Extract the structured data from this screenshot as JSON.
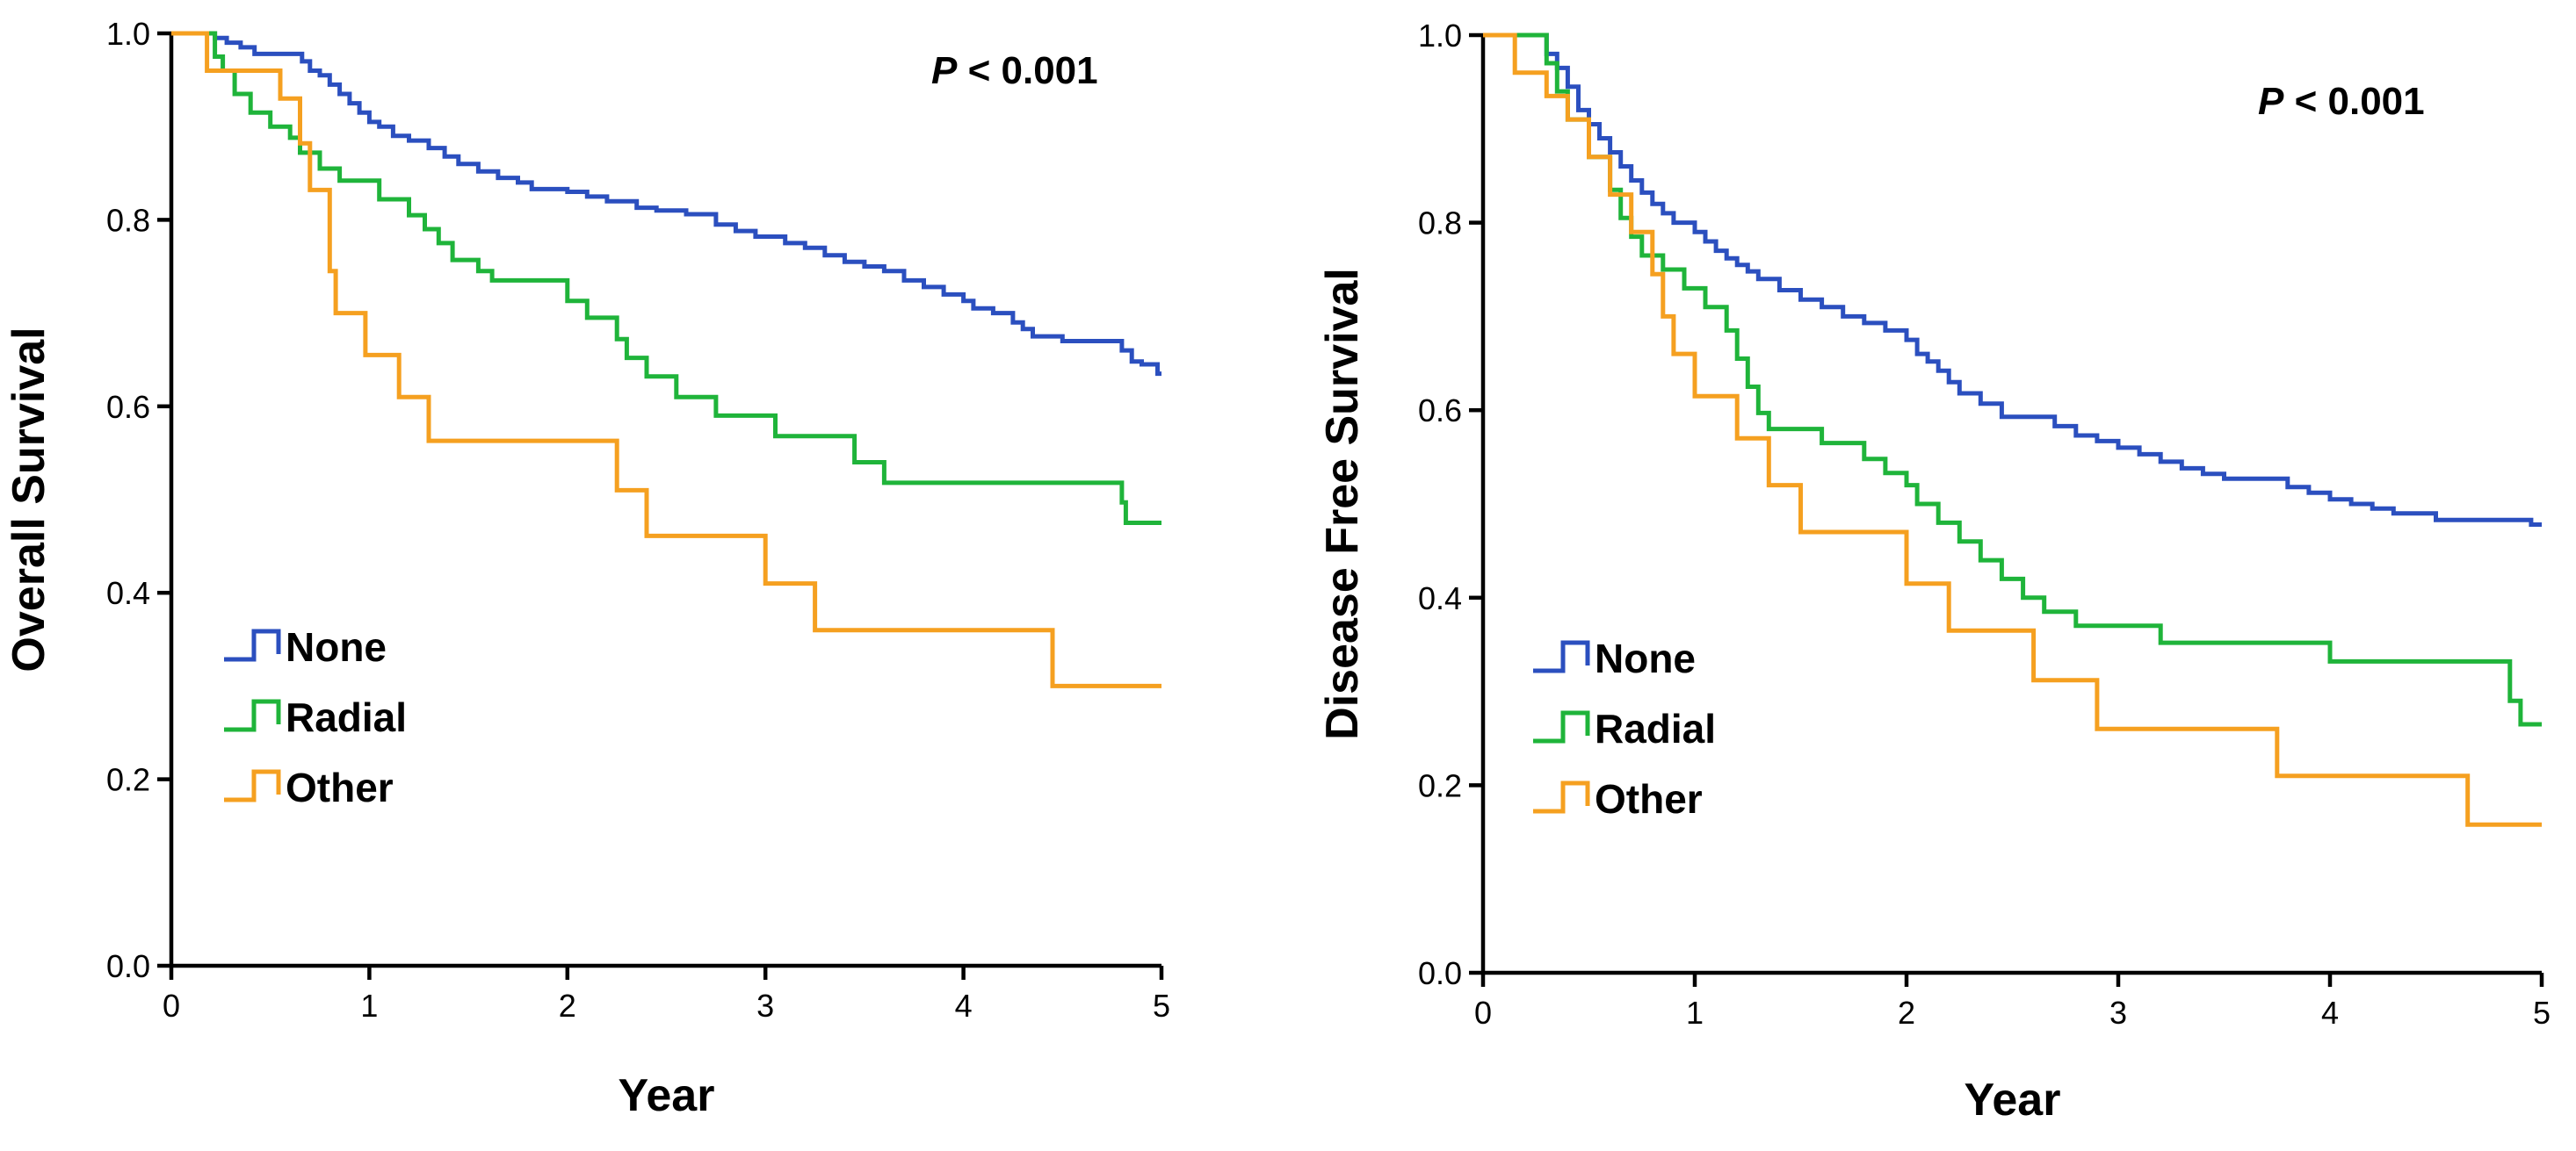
{
  "chart_data": [
    {
      "type": "line",
      "step": true,
      "title": "",
      "xlabel": "Year",
      "ylabel": "Overall Survival",
      "xlim": [
        0,
        5
      ],
      "ylim": [
        0,
        1
      ],
      "xticks": [
        "0",
        "1",
        "2",
        "3",
        "4",
        "5"
      ],
      "yticks": [
        "0.0",
        "0.2",
        "0.4",
        "0.6",
        "0.8",
        "1.0"
      ],
      "annotation": {
        "italic": "P",
        "rest": " < 0.001"
      },
      "legend_position": "bottom-left",
      "series": [
        {
          "name": "None",
          "color": "#2b4fbf",
          "points": [
            [
              0,
              1
            ],
            [
              0.2,
              1
            ],
            [
              0.22,
              0.995
            ],
            [
              0.28,
              0.99
            ],
            [
              0.35,
              0.985
            ],
            [
              0.42,
              0.978
            ],
            [
              0.6,
              0.978
            ],
            [
              0.66,
              0.97
            ],
            [
              0.7,
              0.96
            ],
            [
              0.75,
              0.955
            ],
            [
              0.8,
              0.945
            ],
            [
              0.85,
              0.935
            ],
            [
              0.9,
              0.925
            ],
            [
              0.95,
              0.915
            ],
            [
              1.0,
              0.905
            ],
            [
              1.05,
              0.9
            ],
            [
              1.12,
              0.89
            ],
            [
              1.2,
              0.885
            ],
            [
              1.3,
              0.877
            ],
            [
              1.38,
              0.868
            ],
            [
              1.45,
              0.86
            ],
            [
              1.55,
              0.852
            ],
            [
              1.65,
              0.845
            ],
            [
              1.75,
              0.84
            ],
            [
              1.82,
              0.833
            ],
            [
              2.0,
              0.83
            ],
            [
              2.1,
              0.825
            ],
            [
              2.2,
              0.82
            ],
            [
              2.35,
              0.813
            ],
            [
              2.45,
              0.81
            ],
            [
              2.6,
              0.806
            ],
            [
              2.75,
              0.795
            ],
            [
              2.85,
              0.788
            ],
            [
              2.95,
              0.782
            ],
            [
              3.1,
              0.775
            ],
            [
              3.2,
              0.77
            ],
            [
              3.3,
              0.762
            ],
            [
              3.4,
              0.755
            ],
            [
              3.5,
              0.75
            ],
            [
              3.6,
              0.745
            ],
            [
              3.7,
              0.735
            ],
            [
              3.8,
              0.728
            ],
            [
              3.9,
              0.72
            ],
            [
              4.0,
              0.713
            ],
            [
              4.05,
              0.705
            ],
            [
              4.15,
              0.7
            ],
            [
              4.25,
              0.69
            ],
            [
              4.3,
              0.683
            ],
            [
              4.35,
              0.675
            ],
            [
              4.5,
              0.67
            ],
            [
              4.8,
              0.66
            ],
            [
              4.85,
              0.648
            ],
            [
              4.9,
              0.645
            ],
            [
              4.95,
              0.645
            ],
            [
              4.98,
              0.635
            ],
            [
              5.0,
              0.635
            ]
          ]
        },
        {
          "name": "Radial",
          "color": "#1fb43a",
          "points": [
            [
              0,
              1
            ],
            [
              0.18,
              1
            ],
            [
              0.22,
              0.975
            ],
            [
              0.26,
              0.96
            ],
            [
              0.32,
              0.935
            ],
            [
              0.4,
              0.915
            ],
            [
              0.5,
              0.9
            ],
            [
              0.6,
              0.888
            ],
            [
              0.65,
              0.872
            ],
            [
              0.75,
              0.855
            ],
            [
              0.85,
              0.842
            ],
            [
              1.05,
              0.822
            ],
            [
              1.2,
              0.805
            ],
            [
              1.28,
              0.79
            ],
            [
              1.35,
              0.775
            ],
            [
              1.42,
              0.757
            ],
            [
              1.55,
              0.745
            ],
            [
              1.62,
              0.735
            ],
            [
              2.0,
              0.713
            ],
            [
              2.1,
              0.695
            ],
            [
              2.25,
              0.672
            ],
            [
              2.3,
              0.652
            ],
            [
              2.4,
              0.632
            ],
            [
              2.55,
              0.61
            ],
            [
              2.75,
              0.59
            ],
            [
              3.05,
              0.568
            ],
            [
              3.45,
              0.54
            ],
            [
              3.6,
              0.518
            ],
            [
              4.8,
              0.497
            ],
            [
              4.82,
              0.475
            ],
            [
              5.0,
              0.475
            ]
          ]
        },
        {
          "name": "Other",
          "color": "#f5a020",
          "points": [
            [
              0,
              1
            ],
            [
              0.15,
              1
            ],
            [
              0.18,
              0.96
            ],
            [
              0.55,
              0.93
            ],
            [
              0.65,
              0.882
            ],
            [
              0.7,
              0.832
            ],
            [
              0.8,
              0.745
            ],
            [
              0.83,
              0.7
            ],
            [
              0.98,
              0.655
            ],
            [
              1.15,
              0.61
            ],
            [
              1.3,
              0.563
            ],
            [
              2.25,
              0.51
            ],
            [
              2.4,
              0.461
            ],
            [
              3.0,
              0.41
            ],
            [
              3.25,
              0.36
            ],
            [
              4.45,
              0.3
            ],
            [
              5.0,
              0.3
            ]
          ]
        }
      ]
    },
    {
      "type": "line",
      "step": true,
      "title": "",
      "xlabel": "Year",
      "ylabel": "Disease Free Survival",
      "xlim": [
        0,
        5
      ],
      "ylim": [
        0,
        1
      ],
      "xticks": [
        "0",
        "1",
        "2",
        "3",
        "4",
        "5"
      ],
      "yticks": [
        "0.0",
        "0.2",
        "0.4",
        "0.6",
        "0.8",
        "1.0"
      ],
      "annotation": {
        "italic": "P",
        "rest": " < 0.001"
      },
      "legend_position": "bottom-left",
      "series": [
        {
          "name": "None",
          "color": "#2b4fbf",
          "points": [
            [
              0,
              1
            ],
            [
              0.25,
              1
            ],
            [
              0.3,
              0.98
            ],
            [
              0.35,
              0.965
            ],
            [
              0.4,
              0.945
            ],
            [
              0.45,
              0.92
            ],
            [
              0.5,
              0.905
            ],
            [
              0.55,
              0.89
            ],
            [
              0.6,
              0.875
            ],
            [
              0.65,
              0.86
            ],
            [
              0.7,
              0.845
            ],
            [
              0.75,
              0.832
            ],
            [
              0.8,
              0.82
            ],
            [
              0.85,
              0.81
            ],
            [
              0.9,
              0.8
            ],
            [
              1.0,
              0.79
            ],
            [
              1.05,
              0.78
            ],
            [
              1.1,
              0.77
            ],
            [
              1.15,
              0.762
            ],
            [
              1.2,
              0.755
            ],
            [
              1.25,
              0.748
            ],
            [
              1.3,
              0.74
            ],
            [
              1.4,
              0.728
            ],
            [
              1.5,
              0.718
            ],
            [
              1.6,
              0.71
            ],
            [
              1.7,
              0.7
            ],
            [
              1.8,
              0.693
            ],
            [
              1.9,
              0.685
            ],
            [
              2.0,
              0.675
            ],
            [
              2.05,
              0.66
            ],
            [
              2.1,
              0.652
            ],
            [
              2.15,
              0.642
            ],
            [
              2.2,
              0.63
            ],
            [
              2.25,
              0.618
            ],
            [
              2.35,
              0.607
            ],
            [
              2.45,
              0.593
            ],
            [
              2.7,
              0.583
            ],
            [
              2.8,
              0.573
            ],
            [
              2.9,
              0.567
            ],
            [
              3.0,
              0.56
            ],
            [
              3.1,
              0.553
            ],
            [
              3.2,
              0.545
            ],
            [
              3.3,
              0.538
            ],
            [
              3.4,
              0.532
            ],
            [
              3.5,
              0.527
            ],
            [
              3.8,
              0.518
            ],
            [
              3.9,
              0.512
            ],
            [
              4.0,
              0.505
            ],
            [
              4.1,
              0.5
            ],
            [
              4.2,
              0.495
            ],
            [
              4.3,
              0.49
            ],
            [
              4.5,
              0.483
            ],
            [
              4.95,
              0.478
            ],
            [
              5.0,
              0.478
            ]
          ]
        },
        {
          "name": "Radial",
          "color": "#1fb43a",
          "points": [
            [
              0,
              1
            ],
            [
              0.2,
              1
            ],
            [
              0.3,
              0.97
            ],
            [
              0.35,
              0.94
            ],
            [
              0.4,
              0.91
            ],
            [
              0.5,
              0.87
            ],
            [
              0.6,
              0.835
            ],
            [
              0.65,
              0.805
            ],
            [
              0.7,
              0.785
            ],
            [
              0.75,
              0.765
            ],
            [
              0.85,
              0.75
            ],
            [
              0.95,
              0.73
            ],
            [
              1.05,
              0.71
            ],
            [
              1.15,
              0.685
            ],
            [
              1.2,
              0.655
            ],
            [
              1.25,
              0.625
            ],
            [
              1.3,
              0.597
            ],
            [
              1.35,
              0.58
            ],
            [
              1.6,
              0.565
            ],
            [
              1.8,
              0.548
            ],
            [
              1.9,
              0.533
            ],
            [
              2.0,
              0.52
            ],
            [
              2.05,
              0.5
            ],
            [
              2.15,
              0.48
            ],
            [
              2.25,
              0.46
            ],
            [
              2.35,
              0.44
            ],
            [
              2.45,
              0.42
            ],
            [
              2.55,
              0.4
            ],
            [
              2.65,
              0.385
            ],
            [
              2.8,
              0.37
            ],
            [
              3.2,
              0.352
            ],
            [
              4.0,
              0.332
            ],
            [
              4.85,
              0.29
            ],
            [
              4.9,
              0.265
            ],
            [
              5.0,
              0.265
            ]
          ]
        },
        {
          "name": "Other",
          "color": "#f5a020",
          "points": [
            [
              0,
              1
            ],
            [
              0.12,
              1
            ],
            [
              0.15,
              0.96
            ],
            [
              0.3,
              0.935
            ],
            [
              0.4,
              0.91
            ],
            [
              0.5,
              0.87
            ],
            [
              0.6,
              0.83
            ],
            [
              0.7,
              0.79
            ],
            [
              0.8,
              0.745
            ],
            [
              0.85,
              0.7
            ],
            [
              0.9,
              0.66
            ],
            [
              1.0,
              0.615
            ],
            [
              1.2,
              0.57
            ],
            [
              1.35,
              0.52
            ],
            [
              1.5,
              0.47
            ],
            [
              2.0,
              0.415
            ],
            [
              2.2,
              0.365
            ],
            [
              2.6,
              0.312
            ],
            [
              2.9,
              0.26
            ],
            [
              3.75,
              0.21
            ],
            [
              4.65,
              0.158
            ],
            [
              5.0,
              0.158
            ]
          ]
        }
      ]
    }
  ]
}
